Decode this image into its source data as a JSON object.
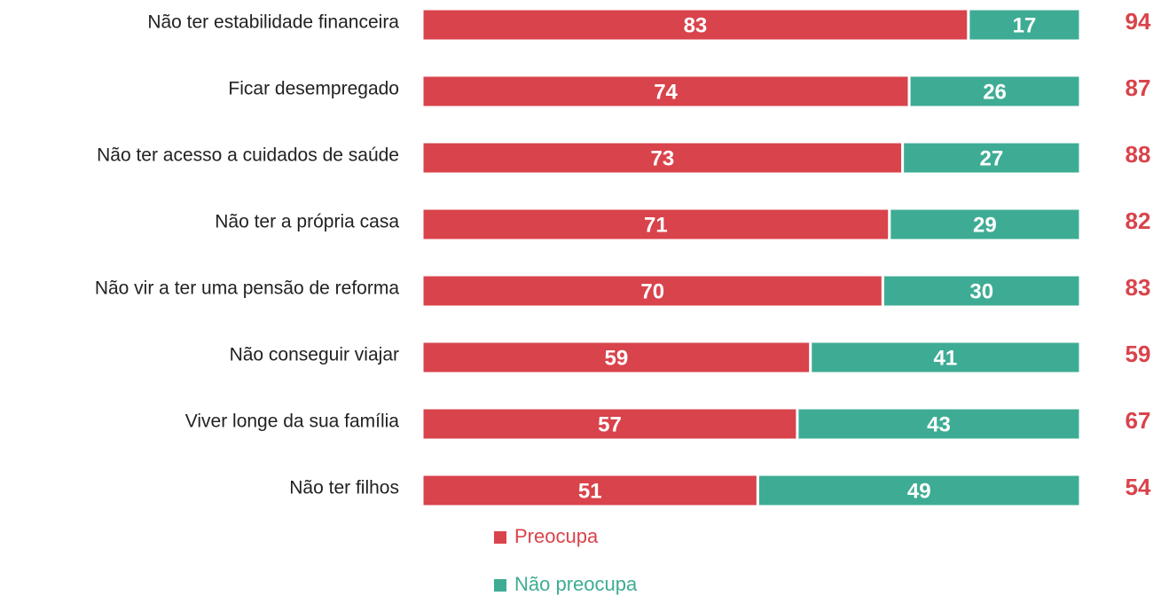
{
  "chart_data": {
    "type": "stacked-bar-horizontal",
    "categories": [
      "Não ter estabilidade financeira",
      "Ficar desempregado",
      "Não ter acesso a cuidados de saúde",
      "Não ter a própria casa",
      "Não vir a ter uma pensão de reforma",
      "Não conseguir viajar",
      "Viver longe da sua família",
      "Não ter filhos"
    ],
    "series": [
      {
        "name": "Preocupa",
        "color": "#d9434b",
        "values": [
          83,
          74,
          73,
          71,
          70,
          59,
          57,
          51
        ]
      },
      {
        "name": "Não preocupa",
        "color": "#3eac94",
        "values": [
          17,
          26,
          27,
          29,
          30,
          41,
          43,
          49
        ]
      }
    ],
    "side_values": {
      "color": "#d9434b",
      "values": [
        94,
        87,
        88,
        82,
        83,
        59,
        67,
        54
      ]
    },
    "xlim": [
      0,
      100
    ],
    "legend": "bottom"
  }
}
